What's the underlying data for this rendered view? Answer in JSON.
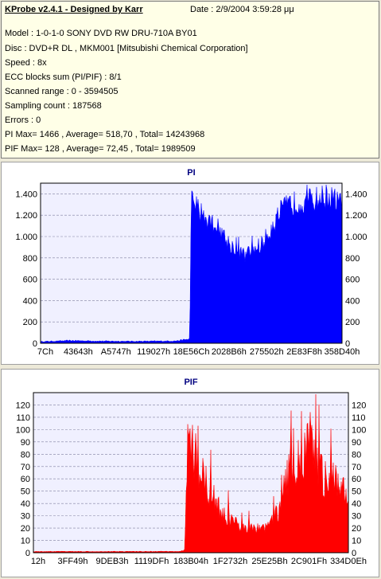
{
  "info": {
    "title": "KProbe v2.4.1 - Designed by Karr",
    "date": "Date : 2/9/2004 3:59:28 μμ",
    "lines": [
      "Model : 1-0-1-0 SONY    DVD RW DRU-710A  BY01",
      "Disc : DVD+R DL , MKM001 [Mitsubishi Chemical Corporation]",
      "Speed : 8x",
      "ECC blocks sum (PI/PIF) : 8/1",
      "Scanned range : 0 - 3594505",
      "Sampling count : 187568",
      "Errors : 0",
      "PI Max= 1466 , Average= 518,70 , Total= 14243968",
      "PIF Max= 128 , Average= 72,45 , Total= 1989509"
    ]
  },
  "chart_data": [
    {
      "type": "area",
      "title": "PI",
      "color": "#0000ff",
      "ylim": [
        0,
        1500
      ],
      "yticks": [
        0,
        200,
        400,
        600,
        800,
        1000,
        1200,
        1400
      ],
      "ytick_labels": [
        "0",
        "200",
        "400",
        "600",
        "800",
        "1.000",
        "1.200",
        "1.400"
      ],
      "xtick_labels": [
        "7Ch",
        "43643h",
        "A5747h",
        "119027h",
        "18E56Ch",
        "2028B6h",
        "275502h",
        "2E83F8h",
        "358D40h"
      ],
      "grid": true,
      "series_profile": {
        "x_fraction": [
          0,
          0.05,
          0.1,
          0.2,
          0.3,
          0.4,
          0.45,
          0.495,
          0.5,
          0.505,
          0.54,
          0.56,
          0.6,
          0.62,
          0.64,
          0.66,
          0.68,
          0.7,
          0.72,
          0.74,
          0.76,
          0.78,
          0.8,
          0.83,
          0.85,
          0.88,
          0.9,
          0.93,
          0.95,
          0.97,
          1.0
        ],
        "y": [
          15,
          20,
          25,
          20,
          18,
          20,
          22,
          40,
          1350,
          1320,
          1200,
          1150,
          1050,
          950,
          900,
          850,
          820,
          870,
          900,
          950,
          1050,
          1150,
          1250,
          1300,
          1320,
          1330,
          1340,
          1360,
          1380,
          1350,
          1300
        ]
      }
    },
    {
      "type": "area",
      "title": "PIF",
      "color": "#ff0000",
      "ylim": [
        0,
        130
      ],
      "yticks": [
        0,
        10,
        20,
        30,
        40,
        50,
        60,
        70,
        80,
        90,
        100,
        110,
        120
      ],
      "ytick_labels": [
        "0",
        "10",
        "20",
        "30",
        "40",
        "50",
        "60",
        "70",
        "80",
        "90",
        "100",
        "110",
        "120"
      ],
      "xtick_labels": [
        "12h",
        "3FF49h",
        "9DEB3h",
        "1119DFh",
        "183B04h",
        "1F2732h",
        "25E25Bh",
        "2C901Fh",
        "334D0Eh"
      ],
      "grid": true,
      "series_profile": {
        "x_fraction": [
          0,
          0.1,
          0.2,
          0.3,
          0.4,
          0.46,
          0.48,
          0.49,
          0.5,
          0.52,
          0.54,
          0.56,
          0.58,
          0.6,
          0.63,
          0.66,
          0.7,
          0.73,
          0.76,
          0.78,
          0.8,
          0.82,
          0.84,
          0.86,
          0.88,
          0.9,
          0.92,
          0.94,
          0.96,
          0.98,
          1.0
        ],
        "y": [
          1,
          1,
          1,
          1,
          1,
          1,
          2,
          90,
          85,
          75,
          60,
          50,
          40,
          30,
          25,
          20,
          18,
          20,
          25,
          35,
          55,
          70,
          75,
          80,
          85,
          75,
          60,
          55,
          60,
          50,
          45
        ]
      }
    }
  ]
}
